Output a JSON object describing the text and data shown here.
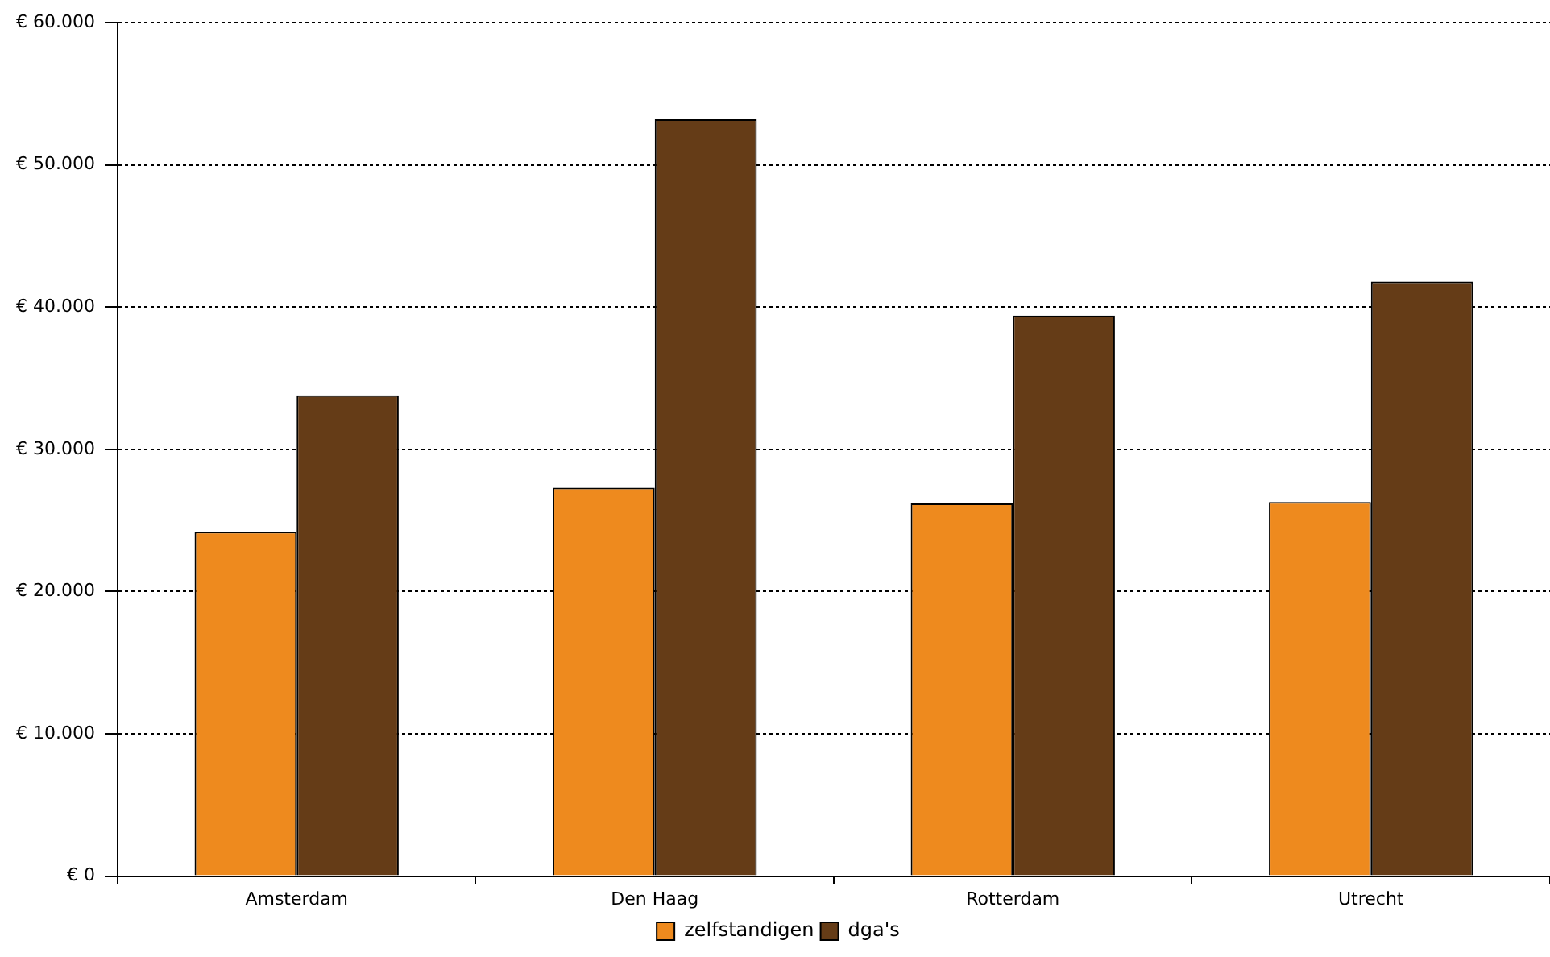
{
  "chart_data": {
    "type": "bar",
    "categories": [
      "Amsterdam",
      "Den Haag",
      "Rotterdam",
      "Utrecht"
    ],
    "series": [
      {
        "name": "zelfstandigen",
        "color": "#ee8a1e",
        "values": [
          24200,
          27300,
          26200,
          26300
        ]
      },
      {
        "name": "dga's",
        "color": "#653c17",
        "values": [
          33800,
          53200,
          39400,
          41800
        ]
      }
    ],
    "ylim": [
      0,
      60000
    ],
    "yticks": [
      {
        "value": 0,
        "label": "€ 0"
      },
      {
        "value": 10000,
        "label": "€ 10.000"
      },
      {
        "value": 20000,
        "label": "€ 20.000"
      },
      {
        "value": 30000,
        "label": "€ 30.000"
      },
      {
        "value": 40000,
        "label": "€ 40.000"
      },
      {
        "value": 50000,
        "label": "€ 50.000"
      },
      {
        "value": 60000,
        "label": "€ 60.000"
      }
    ],
    "grid": "y",
    "legend": "bottom"
  }
}
